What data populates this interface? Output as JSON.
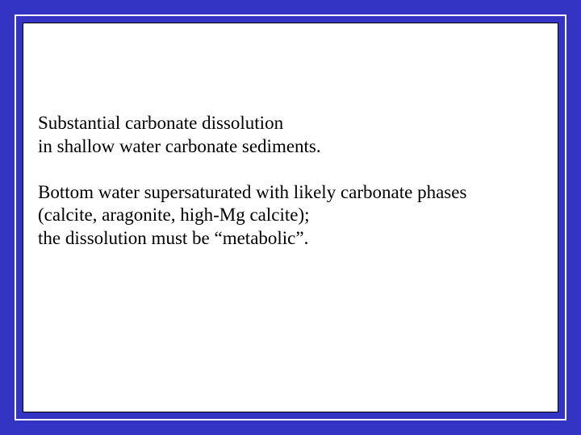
{
  "slide": {
    "outer_background": "#3434c4",
    "frame_border_color": "#ffffff",
    "content_background": "#ffffff",
    "text_color": "#000000",
    "font_family": "Times New Roman",
    "font_size_pt": 17,
    "paragraph1_line1": "Substantial carbonate dissolution",
    "paragraph1_line2": "in shallow water carbonate sediments.",
    "paragraph2_line1": "Bottom water supersaturated with likely carbonate phases",
    "paragraph2_line2": "(calcite, aragonite, high-Mg calcite);",
    "paragraph2_line3": "the dissolution must be “metabolic”."
  }
}
